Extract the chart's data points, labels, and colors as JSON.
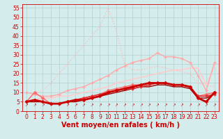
{
  "xlabel": "Vent moyen/en rafales ( km/h )",
  "background_color": "#d4ecec",
  "grid_color": "#b0d0d0",
  "xlim": [
    -0.5,
    23.5
  ],
  "ylim": [
    0,
    57
  ],
  "yticks": [
    0,
    5,
    10,
    15,
    20,
    25,
    30,
    35,
    40,
    45,
    50,
    55
  ],
  "xticks": [
    0,
    1,
    2,
    3,
    4,
    5,
    6,
    7,
    8,
    9,
    10,
    11,
    12,
    13,
    14,
    15,
    16,
    17,
    18,
    19,
    20,
    21,
    22,
    23
  ],
  "lines": [
    {
      "x": [
        0,
        1,
        2,
        3,
        4,
        5,
        6,
        7,
        8,
        9,
        10,
        11,
        12,
        13,
        14,
        15,
        16,
        17,
        18,
        19,
        20,
        21,
        22,
        23
      ],
      "y": [
        5,
        10,
        11,
        15,
        20,
        25,
        30,
        35,
        40,
        45,
        55,
        43,
        25,
        22,
        22,
        23,
        24,
        23,
        22,
        21,
        20,
        15,
        14,
        13
      ],
      "color": "#ffbbbb",
      "lw": 1.0,
      "marker": null,
      "linestyle": "dotted",
      "zorder": 2
    },
    {
      "x": [
        0,
        1,
        2,
        3,
        4,
        5,
        6,
        7,
        8,
        9,
        10,
        11,
        12,
        13,
        14,
        15,
        16,
        17,
        18,
        19,
        20,
        21,
        22,
        23
      ],
      "y": [
        10,
        9,
        8,
        8,
        9,
        11,
        12,
        13,
        15,
        17,
        19,
        22,
        24,
        26,
        27,
        28,
        31,
        29,
        29,
        28,
        26,
        19,
        11,
        26
      ],
      "color": "#ffaaaa",
      "lw": 1.0,
      "marker": "D",
      "markersize": 2.0,
      "linestyle": "solid",
      "zorder": 3
    },
    {
      "x": [
        0,
        1,
        2,
        3,
        4,
        5,
        6,
        7,
        8,
        9,
        10,
        11,
        12,
        13,
        14,
        15,
        16,
        17,
        18,
        19,
        20,
        21,
        22,
        23
      ],
      "y": [
        5,
        6,
        7,
        7,
        8,
        8,
        9,
        10,
        11,
        12,
        13,
        15,
        16,
        17,
        18,
        19,
        20,
        21,
        22,
        22,
        23,
        23,
        14,
        24
      ],
      "color": "#ffcccc",
      "lw": 1.2,
      "marker": null,
      "linestyle": "solid",
      "zorder": 2
    },
    {
      "x": [
        0,
        1,
        2,
        3,
        4,
        5,
        6,
        7,
        8,
        9,
        10,
        11,
        12,
        13,
        14,
        15,
        16,
        17,
        18,
        19,
        20,
        21,
        22,
        23
      ],
      "y": [
        5,
        10,
        7,
        4,
        4,
        5,
        6,
        7,
        8,
        9,
        11,
        12,
        13,
        14,
        14,
        15,
        15,
        15,
        14,
        14,
        13,
        8,
        9,
        10
      ],
      "color": "#ff6666",
      "lw": 1.0,
      "marker": "D",
      "markersize": 2.5,
      "linestyle": "solid",
      "zorder": 4
    },
    {
      "x": [
        0,
        1,
        2,
        3,
        4,
        5,
        6,
        7,
        8,
        9,
        10,
        11,
        12,
        13,
        14,
        15,
        16,
        17,
        18,
        19,
        20,
        21,
        22,
        23
      ],
      "y": [
        5,
        6,
        5,
        4,
        4,
        5,
        6,
        6,
        7,
        8,
        10,
        11,
        12,
        13,
        14,
        15,
        15,
        15,
        14,
        14,
        13,
        7,
        5,
        10
      ],
      "color": "#cc0000",
      "lw": 2.0,
      "marker": "D",
      "markersize": 2.5,
      "linestyle": "solid",
      "zorder": 6
    },
    {
      "x": [
        0,
        1,
        2,
        3,
        4,
        5,
        6,
        7,
        8,
        9,
        10,
        11,
        12,
        13,
        14,
        15,
        16,
        17,
        18,
        19,
        20,
        21,
        22,
        23
      ],
      "y": [
        5,
        5,
        5,
        4,
        4,
        5,
        5,
        6,
        7,
        8,
        9,
        10,
        11,
        12,
        13,
        13,
        14,
        14,
        13,
        13,
        12,
        7,
        7,
        9
      ],
      "color": "#990000",
      "lw": 1.0,
      "marker": null,
      "linestyle": "solid",
      "zorder": 4
    },
    {
      "x": [
        0,
        1,
        2,
        3,
        4,
        5,
        6,
        7,
        8,
        9,
        10,
        11,
        12,
        13,
        14,
        15,
        16,
        17,
        18,
        19,
        20,
        21,
        22,
        23
      ],
      "y": [
        5,
        6,
        5,
        4,
        4,
        5,
        6,
        7,
        8,
        9,
        10,
        11,
        12,
        12,
        13,
        14,
        15,
        15,
        14,
        14,
        13,
        8,
        8,
        9
      ],
      "color": "#dd3333",
      "lw": 1.2,
      "marker": "D",
      "markersize": 2.0,
      "linestyle": "solid",
      "zorder": 5
    }
  ],
  "text_color": "#cc0000",
  "xlabel_fontsize": 7,
  "tick_fontsize": 5.5
}
